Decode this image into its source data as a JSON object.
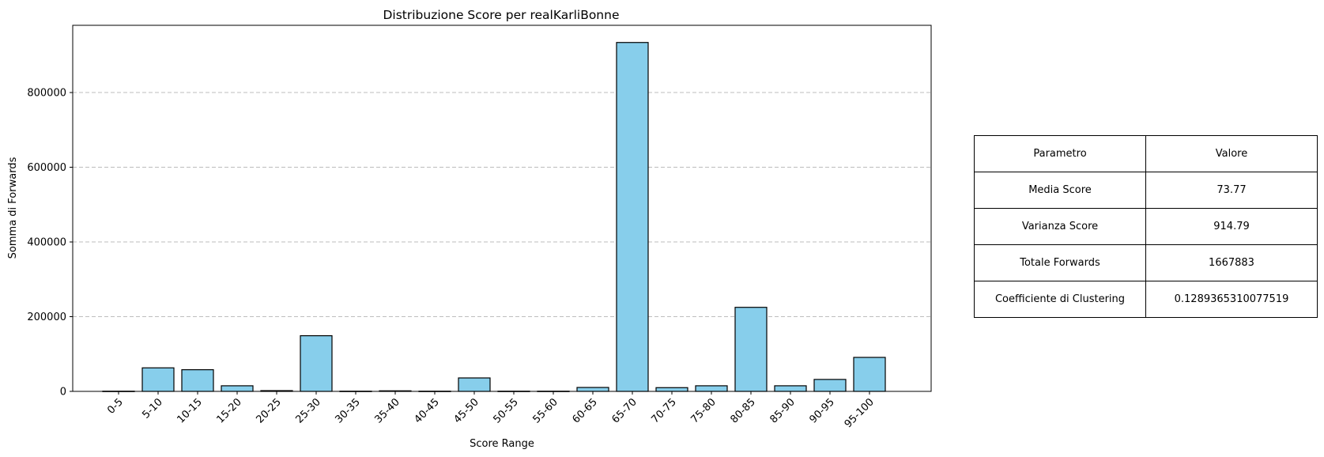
{
  "chart_data": {
    "type": "bar",
    "title": "Distribuzione Score per realKarliBonne",
    "xlabel": "Score Range",
    "ylabel": "Somma di Forwards",
    "categories": [
      "0-5",
      "5-10",
      "10-15",
      "15-20",
      "20-25",
      "25-30",
      "30-35",
      "35-40",
      "40-45",
      "45-50",
      "50-55",
      "55-60",
      "60-65",
      "65-70",
      "70-75",
      "75-80",
      "80-85",
      "85-90",
      "90-95",
      "95-100"
    ],
    "values": [
      500,
      63000,
      58000,
      15000,
      2000,
      149000,
      500,
      1500,
      500,
      36000,
      500,
      500,
      10500,
      934000,
      10000,
      15000,
      225000,
      15000,
      32000,
      91000
    ],
    "ylim": [
      0,
      980000
    ],
    "yticks": [
      0,
      200000,
      400000,
      600000,
      800000
    ],
    "grid": "y-dashed",
    "bar_color": "#87ceeb",
    "edge_color": "#000000"
  },
  "table": {
    "header": [
      "Parametro",
      "Valore"
    ],
    "rows": [
      [
        "Media Score",
        "73.77"
      ],
      [
        "Varianza Score",
        "914.79"
      ],
      [
        "Totale Forwards",
        "1667883"
      ],
      [
        "Coefficiente di Clustering",
        "0.1289365310077519"
      ]
    ]
  }
}
